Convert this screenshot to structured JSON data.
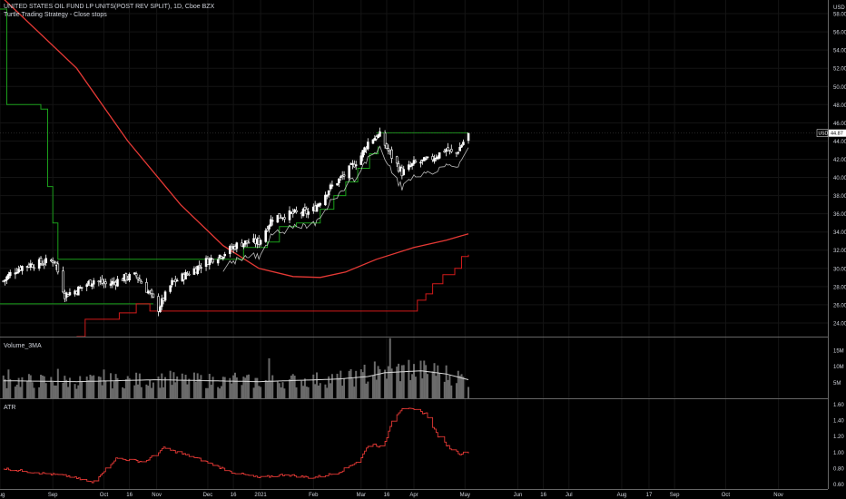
{
  "header": {
    "symbol_title": "UNITED STATES OIL FUND LP UNITS(POST REV SPLIT), 1D, Cboe BZX",
    "strategy_title": "Turtle Trading Strategy - Close stops"
  },
  "price_axis": {
    "unit": "USD",
    "ticks": [
      "58.00",
      "56.00",
      "54.00",
      "52.00",
      "50.00",
      "48.00",
      "46.00",
      "44.00",
      "42.00",
      "40.00",
      "38.00",
      "36.00",
      "34.00",
      "32.00",
      "30.00",
      "28.00",
      "26.00",
      "24.00"
    ],
    "last_price_tag": "USD",
    "last_price": "44.87"
  },
  "volume_pane": {
    "title": "Volume_3MA",
    "ticks": [
      "15M",
      "10M",
      "5M"
    ]
  },
  "atr_pane": {
    "title": "ATR",
    "ticks": [
      "1.60",
      "1.40",
      "1.20",
      "1.00",
      "0.80",
      "0.60"
    ]
  },
  "time_axis": {
    "labels": [
      "Aug",
      "Sep",
      "Oct",
      "16",
      "Nov",
      "Dec",
      "16",
      "2021",
      "Feb",
      "Mar",
      "16",
      "Apr",
      "May",
      "Jun",
      "16",
      "Jul",
      "Aug",
      "17",
      "Sep",
      "Oct",
      "Nov"
    ]
  },
  "colors": {
    "background": "#000000",
    "up_candle": "#ffffff",
    "down_candle": "#ffffff",
    "ma_line": "#e53935",
    "long_stop": "#1b9e1b",
    "short_stop": "#d11a1a",
    "atr_line": "#e53935",
    "volume_bar": "#6b6b6b",
    "volume_ma": "#d9d9d9",
    "grid": "#141414",
    "axis_text": "#d1d4dc"
  },
  "chart_data": [
    {
      "type": "candlestick",
      "x_start": "2020-08-01",
      "x_end": "2021-11-30",
      "ylim": [
        22.5,
        59.5
      ],
      "last_close": 44.87,
      "path_anchors": [
        {
          "date": "2020-08-03",
          "close": 28.6
        },
        {
          "date": "2020-08-08",
          "close": 29.6
        },
        {
          "date": "2020-08-15",
          "close": 30.3
        },
        {
          "date": "2020-08-25",
          "close": 30.6
        },
        {
          "date": "2020-09-02",
          "close": 30.9
        },
        {
          "date": "2020-09-08",
          "close": 27.1
        },
        {
          "date": "2020-09-15",
          "close": 27.6
        },
        {
          "date": "2020-09-25",
          "close": 28.7
        },
        {
          "date": "2020-10-03",
          "close": 28.2
        },
        {
          "date": "2020-10-12",
          "close": 28.9
        },
        {
          "date": "2020-10-20",
          "close": 29.2
        },
        {
          "date": "2020-10-28",
          "close": 27.2
        },
        {
          "date": "2020-11-02",
          "close": 25.6
        },
        {
          "date": "2020-11-10",
          "close": 28.4
        },
        {
          "date": "2020-11-20",
          "close": 29.5
        },
        {
          "date": "2020-11-30",
          "close": 30.8
        },
        {
          "date": "2020-12-10",
          "close": 31.6
        },
        {
          "date": "2020-12-20",
          "close": 32.8
        },
        {
          "date": "2020-12-31",
          "close": 32.9
        },
        {
          "date": "2021-01-08",
          "close": 35.6
        },
        {
          "date": "2021-01-20",
          "close": 36.0
        },
        {
          "date": "2021-01-31",
          "close": 36.2
        },
        {
          "date": "2021-02-10",
          "close": 38.7
        },
        {
          "date": "2021-02-20",
          "close": 40.4
        },
        {
          "date": "2021-03-01",
          "close": 42.4
        },
        {
          "date": "2021-03-06",
          "close": 44.2
        },
        {
          "date": "2021-03-12",
          "close": 44.6
        },
        {
          "date": "2021-03-18",
          "close": 42.6
        },
        {
          "date": "2021-03-25",
          "close": 40.5
        },
        {
          "date": "2021-04-01",
          "close": 41.5
        },
        {
          "date": "2021-04-10",
          "close": 41.9
        },
        {
          "date": "2021-04-20",
          "close": 43.1
        },
        {
          "date": "2021-04-25",
          "close": 42.4
        },
        {
          "date": "2021-04-30",
          "close": 43.9
        },
        {
          "date": "2021-05-03",
          "close": 44.87
        }
      ],
      "moving_average": [
        {
          "date": "2020-08-01",
          "value": 60.0
        },
        {
          "date": "2020-09-15",
          "value": 52.0
        },
        {
          "date": "2020-10-15",
          "value": 44.0
        },
        {
          "date": "2020-11-15",
          "value": 37.0
        },
        {
          "date": "2020-12-10",
          "value": 32.5
        },
        {
          "date": "2020-12-31",
          "value": 30.0
        },
        {
          "date": "2021-01-20",
          "value": 29.1
        },
        {
          "date": "2021-02-05",
          "value": 29.0
        },
        {
          "date": "2021-02-20",
          "value": 29.6
        },
        {
          "date": "2021-03-10",
          "value": 31.0
        },
        {
          "date": "2021-04-01",
          "value": 32.3
        },
        {
          "date": "2021-04-20",
          "value": 33.1
        },
        {
          "date": "2021-05-03",
          "value": 33.8
        }
      ],
      "long_stop": [
        {
          "date": "2020-08-01",
          "value": 58.5
        },
        {
          "date": "2020-08-05",
          "value": 48.0
        },
        {
          "date": "2020-08-25",
          "value": 47.5
        },
        {
          "date": "2020-08-29",
          "value": 39.0
        },
        {
          "date": "2020-09-01",
          "value": 35.0
        },
        {
          "date": "2020-09-04",
          "value": 31.0
        },
        {
          "date": "2020-12-20",
          "value": 31.0
        },
        {
          "date": "2020-12-22",
          "value": 32.3
        },
        {
          "date": "2021-01-05",
          "value": 32.9
        },
        {
          "date": "2021-01-12",
          "value": 34.6
        },
        {
          "date": "2021-01-22",
          "value": 35.0
        },
        {
          "date": "2021-01-31",
          "value": 35.0
        },
        {
          "date": "2021-02-05",
          "value": 36.5
        },
        {
          "date": "2021-02-13",
          "value": 38.0
        },
        {
          "date": "2021-02-20",
          "value": 39.5
        },
        {
          "date": "2021-02-27",
          "value": 41.0
        },
        {
          "date": "2021-03-06",
          "value": 42.6
        },
        {
          "date": "2021-03-11",
          "value": 43.4
        }
      ],
      "long_stop_exit_level": {
        "value": 26.1,
        "from": "2020-08-01",
        "to": "2020-10-30"
      },
      "short_stop": [
        {
          "date": "2020-09-15",
          "value": 22.5
        },
        {
          "date": "2020-09-20",
          "value": 24.4
        },
        {
          "date": "2020-10-10",
          "value": 25.1
        },
        {
          "date": "2020-10-20",
          "value": 26.1
        },
        {
          "date": "2020-10-28",
          "value": 25.3
        },
        {
          "date": "2021-03-31",
          "value": 25.3
        },
        {
          "date": "2021-04-03",
          "value": 26.5
        },
        {
          "date": "2021-04-08",
          "value": 27.2
        },
        {
          "date": "2021-04-12",
          "value": 28.3
        },
        {
          "date": "2021-04-18",
          "value": 29.3
        },
        {
          "date": "2021-04-25",
          "value": 30.0
        },
        {
          "date": "2021-04-29",
          "value": 31.3
        },
        {
          "date": "2021-05-03",
          "value": 31.5
        }
      ],
      "breakout_level": {
        "value": 44.9,
        "from": "2021-03-10",
        "to": "2021-05-03"
      }
    },
    {
      "type": "bar",
      "series_title": "Volume_3MA",
      "ylim": [
        0,
        19
      ],
      "unit": "M",
      "volume_anchors": [
        {
          "date": "2020-08-01",
          "value": 5.5
        },
        {
          "date": "2020-09-15",
          "value": 5.2
        },
        {
          "date": "2020-11-01",
          "value": 5.8
        },
        {
          "date": "2020-12-31",
          "value": 5.2
        },
        {
          "date": "2021-02-15",
          "value": 6.0
        },
        {
          "date": "2021-03-05",
          "value": 6.8
        },
        {
          "date": "2021-03-15",
          "value": 8.0
        },
        {
          "date": "2021-04-05",
          "value": 8.6
        },
        {
          "date": "2021-04-20",
          "value": 7.6
        },
        {
          "date": "2021-05-03",
          "value": 5.8
        }
      ],
      "volume_spikes": [
        {
          "date": "2020-08-06",
          "value": 9.0
        },
        {
          "date": "2020-09-04",
          "value": 9.2
        },
        {
          "date": "2020-10-01",
          "value": 9.0
        },
        {
          "date": "2020-11-09",
          "value": 8.6
        },
        {
          "date": "2020-12-17",
          "value": 8.0
        },
        {
          "date": "2021-01-06",
          "value": 12.5
        },
        {
          "date": "2021-03-03",
          "value": 10.5
        },
        {
          "date": "2021-03-09",
          "value": 11.5
        },
        {
          "date": "2021-03-18",
          "value": 18.8
        },
        {
          "date": "2021-03-23",
          "value": 10.8
        },
        {
          "date": "2021-03-29",
          "value": 12.0
        },
        {
          "date": "2021-04-13",
          "value": 11.0
        }
      ]
    },
    {
      "type": "line",
      "series_title": "ATR",
      "ylim": [
        0.54,
        1.66
      ],
      "atr_anchors": [
        {
          "date": "2020-08-01",
          "value": 0.8
        },
        {
          "date": "2020-08-20",
          "value": 0.75
        },
        {
          "date": "2020-09-10",
          "value": 0.7
        },
        {
          "date": "2020-09-24",
          "value": 0.62
        },
        {
          "date": "2020-10-08",
          "value": 0.92
        },
        {
          "date": "2020-10-25",
          "value": 0.88
        },
        {
          "date": "2020-11-05",
          "value": 1.05
        },
        {
          "date": "2020-11-25",
          "value": 0.92
        },
        {
          "date": "2020-12-15",
          "value": 0.75
        },
        {
          "date": "2020-12-31",
          "value": 0.68
        },
        {
          "date": "2021-01-15",
          "value": 0.72
        },
        {
          "date": "2021-01-31",
          "value": 0.68
        },
        {
          "date": "2021-02-15",
          "value": 0.74
        },
        {
          "date": "2021-02-28",
          "value": 0.9
        },
        {
          "date": "2021-03-06",
          "value": 1.12
        },
        {
          "date": "2021-03-14",
          "value": 1.05
        },
        {
          "date": "2021-03-19",
          "value": 1.4
        },
        {
          "date": "2021-03-25",
          "value": 1.55
        },
        {
          "date": "2021-04-02",
          "value": 1.52
        },
        {
          "date": "2021-04-08",
          "value": 1.48
        },
        {
          "date": "2021-04-15",
          "value": 1.2
        },
        {
          "date": "2021-04-22",
          "value": 1.05
        },
        {
          "date": "2021-04-28",
          "value": 0.98
        },
        {
          "date": "2021-05-03",
          "value": 1.0
        }
      ]
    }
  ]
}
